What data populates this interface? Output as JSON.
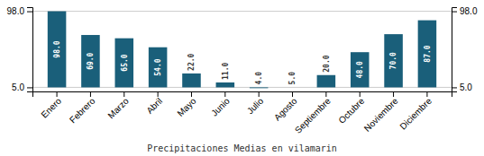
{
  "chart_data": {
    "type": "bar",
    "xlabel": "Precipitaciones Medias en vilamarin",
    "categories": [
      "Enero",
      "Febrero",
      "Marzo",
      "Abril",
      "Mayo",
      "Junio",
      "Julio",
      "Agosto",
      "Septiembre",
      "Octubre",
      "Noviembre",
      "Diciembre"
    ],
    "values": [
      98.0,
      69.0,
      65.0,
      54.0,
      22.0,
      11.0,
      4.0,
      5.0,
      20.0,
      48.0,
      70.0,
      87.0
    ],
    "value_labels": [
      "98.0",
      "69.0",
      "65.0",
      "54.0",
      "22.0",
      "11.0",
      "4.0",
      "5.0",
      "20.0",
      "48.0",
      "70.0",
      "87.0"
    ],
    "data_labels": true,
    "baseline": 5.0,
    "color": "#1a5f7a",
    "ylim": [
      0,
      103
    ],
    "yticks": [
      {
        "value": 98,
        "label": "98.0"
      },
      {
        "value": 5,
        "label": "5.0"
      }
    ],
    "grid": true
  }
}
